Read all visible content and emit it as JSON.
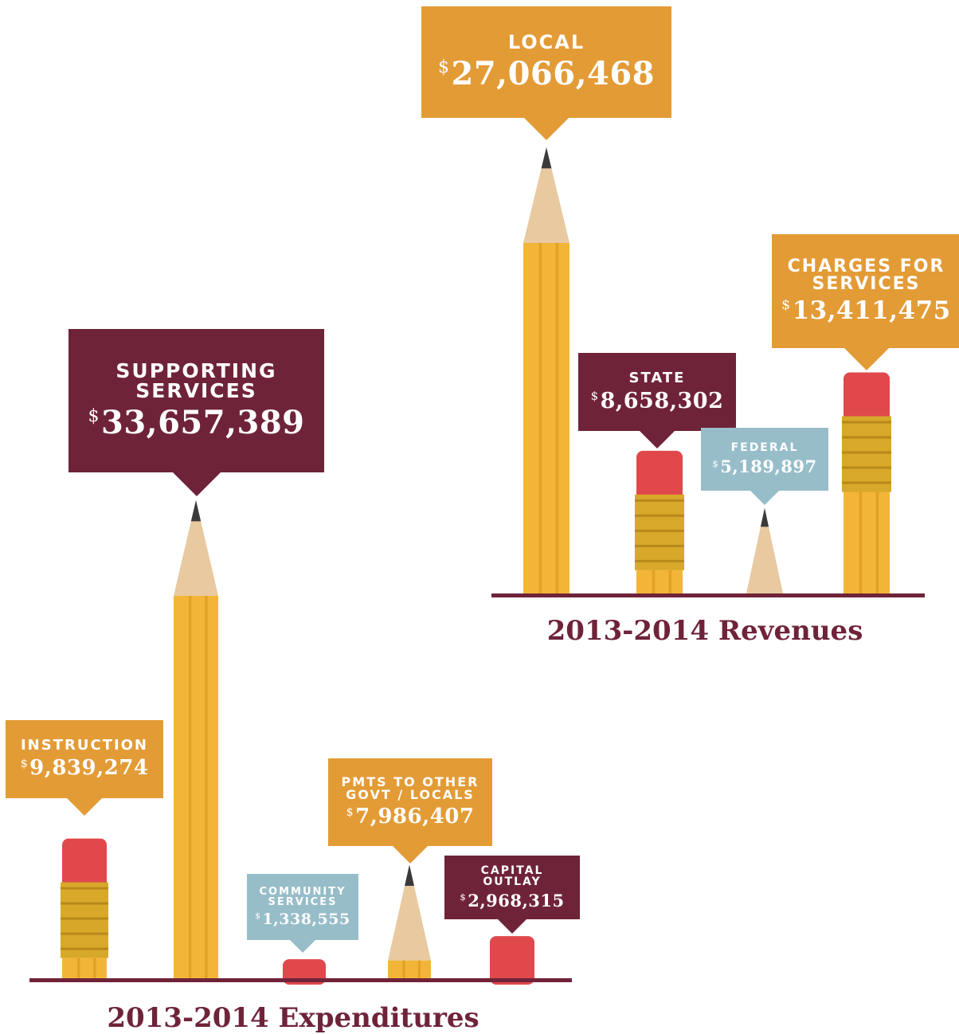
{
  "colors": {
    "maroon": "#6f2339",
    "orange": "#e39b36",
    "blue": "#97bdc9",
    "pencil_body": "#f2b537",
    "pencil_dark": "#d9921a",
    "wood": "#e8c9a0",
    "graphite": "#3a3a3a",
    "eraser": "#e0484c",
    "ferrule": "#d7a82a"
  },
  "chart_data": [
    {
      "type": "bar",
      "title": "2013-2014 Revenues",
      "categories": [
        "LOCAL",
        "STATE",
        "FEDERAL",
        "CHARGES FOR SERVICES"
      ],
      "values": [
        27066468,
        8658302,
        5189897,
        13411475
      ],
      "value_labels": [
        "27,066,468",
        "8,658,302",
        "5,189,897",
        "13,411,475"
      ],
      "currency_symbol": "$",
      "mark_colors": [
        "orange",
        "maroon",
        "blue",
        "orange"
      ],
      "pencil_tips": [
        "point",
        "eraser",
        "point",
        "eraser"
      ]
    },
    {
      "type": "bar",
      "title": "2013-2014 Expenditures",
      "categories": [
        "INSTRUCTION",
        "SUPPORTING SERVICES",
        "COMMUNITY SERVICES",
        "PMTS TO OTHER GOVT / LOCALS",
        "CAPITAL OUTLAY"
      ],
      "values": [
        9839274,
        33657389,
        1338555,
        7986407,
        2968315
      ],
      "value_labels": [
        "9,839,274",
        "33,657,389",
        "1,338,555",
        "7,986,407",
        "2,968,315"
      ],
      "currency_symbol": "$",
      "mark_colors": [
        "orange",
        "maroon",
        "blue",
        "orange",
        "maroon"
      ],
      "pencil_tips": [
        "eraser",
        "point",
        "eraser",
        "point",
        "eraser"
      ]
    }
  ]
}
